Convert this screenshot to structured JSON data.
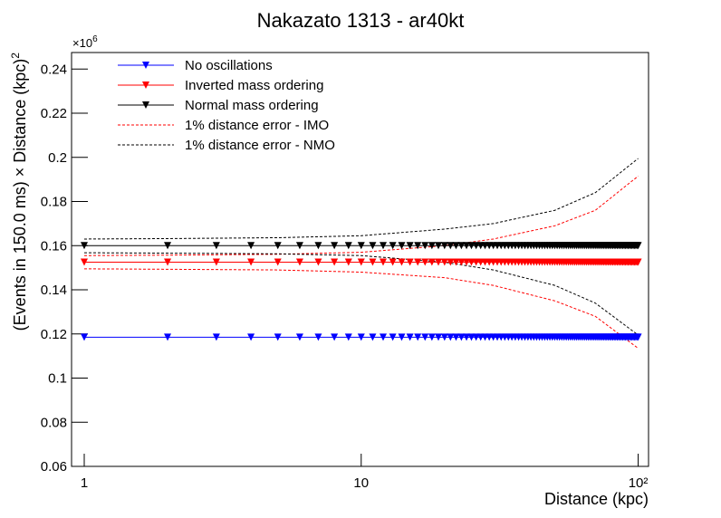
{
  "chart_data": {
    "type": "line",
    "title": "Nakazato 1313 - ar40kt",
    "x_label": "Distance (kpc)",
    "y_label": "(Events in 150.0 ms) × Distance (kpc)",
    "y_label_exp": "2",
    "y_multiplier": "×10",
    "y_multiplier_exp": "6",
    "log_x": true,
    "xlim": [
      0.9,
      109
    ],
    "xticks": [
      1,
      10,
      {
        "value": 100,
        "label": "10²"
      }
    ],
    "ylim": [
      0.06,
      0.2475
    ],
    "yticks": [
      0.06,
      0.08,
      0.1,
      0.12,
      0.14,
      0.16,
      0.18,
      0.2,
      0.22,
      0.24
    ],
    "x": [
      1,
      2,
      3,
      4,
      5,
      6,
      7,
      8,
      9,
      10,
      11,
      12,
      13,
      14,
      15,
      16,
      17,
      18,
      19,
      20,
      21,
      22,
      23,
      24,
      25,
      26,
      27,
      28,
      29,
      30,
      31,
      32,
      33,
      34,
      35,
      36,
      37,
      38,
      39,
      40,
      41,
      42,
      43,
      44,
      45,
      46,
      47,
      48,
      49,
      50,
      51,
      52,
      53,
      54,
      55,
      56,
      57,
      58,
      59,
      60,
      61,
      62,
      63,
      64,
      65,
      66,
      67,
      68,
      69,
      70,
      71,
      72,
      73,
      74,
      75,
      76,
      77,
      78,
      79,
      80,
      81,
      82,
      83,
      84,
      85,
      86,
      87,
      88,
      89,
      90,
      91,
      92,
      93,
      94,
      95,
      96,
      97,
      98,
      99,
      100
    ],
    "series": [
      {
        "name": "No oscillations",
        "color": "#0000ff",
        "values": [
          0.1185,
          0.1185,
          0.1185,
          0.1185,
          0.1185,
          0.1185,
          0.1185,
          0.1185,
          0.1185,
          0.1185,
          0.1185,
          0.1185,
          0.1185,
          0.1185,
          0.1185,
          0.1185,
          0.1185,
          0.1185,
          0.1185,
          0.1185,
          0.1185,
          0.1185,
          0.1185,
          0.1185,
          0.1185,
          0.1185,
          0.1185,
          0.1185,
          0.1185,
          0.1185,
          0.1185,
          0.1185,
          0.1185,
          0.1185,
          0.1185,
          0.1185,
          0.1185,
          0.1185,
          0.1185,
          0.1185,
          0.1185,
          0.1185,
          0.1185,
          0.1185,
          0.1185,
          0.1185,
          0.1185,
          0.1185,
          0.1185,
          0.1185,
          0.1185,
          0.1185,
          0.1185,
          0.1185,
          0.1185,
          0.1185,
          0.1185,
          0.1185,
          0.1185,
          0.1185,
          0.1185,
          0.1185,
          0.1185,
          0.1185,
          0.1185,
          0.1185,
          0.1185,
          0.1185,
          0.1185,
          0.1185,
          0.1185,
          0.1185,
          0.1185,
          0.1185,
          0.1185,
          0.1185,
          0.1185,
          0.1185,
          0.1185,
          0.1185,
          0.1185,
          0.1185,
          0.1185,
          0.1185,
          0.1185,
          0.1185,
          0.1185,
          0.1185,
          0.1185,
          0.1185,
          0.1185,
          0.1185,
          0.1185,
          0.1185,
          0.1185,
          0.1185,
          0.1185,
          0.1185,
          0.1185,
          0.1185
        ]
      },
      {
        "name": "Inverted mass ordering",
        "color": "#ff0000",
        "values": [
          0.1525,
          0.1525,
          0.1525,
          0.1525,
          0.1525,
          0.1525,
          0.1525,
          0.1525,
          0.1525,
          0.1525,
          0.1525,
          0.1525,
          0.1525,
          0.1525,
          0.1525,
          0.1525,
          0.1525,
          0.1525,
          0.1525,
          0.1525,
          0.1525,
          0.1525,
          0.1525,
          0.1525,
          0.1525,
          0.1525,
          0.1525,
          0.1525,
          0.1525,
          0.1525,
          0.1525,
          0.1525,
          0.1525,
          0.1525,
          0.1525,
          0.1525,
          0.1525,
          0.1525,
          0.1525,
          0.1525,
          0.1525,
          0.1525,
          0.1525,
          0.1525,
          0.1525,
          0.1525,
          0.1525,
          0.1525,
          0.1525,
          0.1525,
          0.1525,
          0.1525,
          0.1525,
          0.1525,
          0.1525,
          0.1525,
          0.1525,
          0.1525,
          0.1525,
          0.1525,
          0.1525,
          0.1525,
          0.1525,
          0.1525,
          0.1525,
          0.1525,
          0.1525,
          0.1525,
          0.1525,
          0.1525,
          0.1525,
          0.1525,
          0.1525,
          0.1525,
          0.1525,
          0.1525,
          0.1525,
          0.1525,
          0.1525,
          0.1525,
          0.1525,
          0.1525,
          0.1525,
          0.1525,
          0.1525,
          0.1525,
          0.1525,
          0.1525,
          0.1525,
          0.1525,
          0.1525,
          0.1525,
          0.1525,
          0.1525,
          0.1525,
          0.1525,
          0.1525,
          0.1525,
          0.1525,
          0.1525
        ]
      },
      {
        "name": "Normal mass ordering",
        "color": "#000000",
        "values": [
          0.16,
          0.16,
          0.16,
          0.16,
          0.16,
          0.16,
          0.16,
          0.16,
          0.16,
          0.16,
          0.16,
          0.16,
          0.16,
          0.16,
          0.16,
          0.16,
          0.16,
          0.16,
          0.16,
          0.16,
          0.16,
          0.16,
          0.16,
          0.16,
          0.16,
          0.16,
          0.16,
          0.16,
          0.16,
          0.16,
          0.16,
          0.16,
          0.16,
          0.16,
          0.16,
          0.16,
          0.16,
          0.16,
          0.16,
          0.16,
          0.16,
          0.16,
          0.16,
          0.16,
          0.16,
          0.16,
          0.16,
          0.16,
          0.16,
          0.16,
          0.16,
          0.16,
          0.16,
          0.16,
          0.16,
          0.16,
          0.16,
          0.16,
          0.16,
          0.16,
          0.16,
          0.16,
          0.16,
          0.16,
          0.16,
          0.16,
          0.16,
          0.16,
          0.16,
          0.16,
          0.16,
          0.16,
          0.16,
          0.16,
          0.16,
          0.16,
          0.16,
          0.16,
          0.16,
          0.16,
          0.16,
          0.16,
          0.16,
          0.16,
          0.16,
          0.16,
          0.16,
          0.16,
          0.16,
          0.16,
          0.16,
          0.16,
          0.16,
          0.16,
          0.16,
          0.16,
          0.16,
          0.16,
          0.16,
          0.16
        ]
      }
    ],
    "bands": [
      {
        "name": "1% distance error - IMO",
        "color": "#ff0000",
        "x": [
          1,
          2,
          5,
          10,
          20,
          30,
          50,
          70,
          100
        ],
        "upper": [
          0.1555,
          0.1557,
          0.1561,
          0.157,
          0.16,
          0.163,
          0.169,
          0.176,
          0.1915
        ],
        "lower": [
          0.1495,
          0.1493,
          0.149,
          0.148,
          0.1455,
          0.142,
          0.135,
          0.128,
          0.1135
        ]
      },
      {
        "name": "1% distance error - NMO",
        "color": "#000000",
        "x": [
          1,
          2,
          5,
          10,
          20,
          30,
          50,
          70,
          100
        ],
        "upper": [
          0.163,
          0.1632,
          0.1636,
          0.1645,
          0.1675,
          0.17,
          0.176,
          0.184,
          0.1995
        ],
        "lower": [
          0.1568,
          0.1566,
          0.1563,
          0.1555,
          0.1525,
          0.149,
          0.142,
          0.134,
          0.1195
        ]
      }
    ]
  }
}
